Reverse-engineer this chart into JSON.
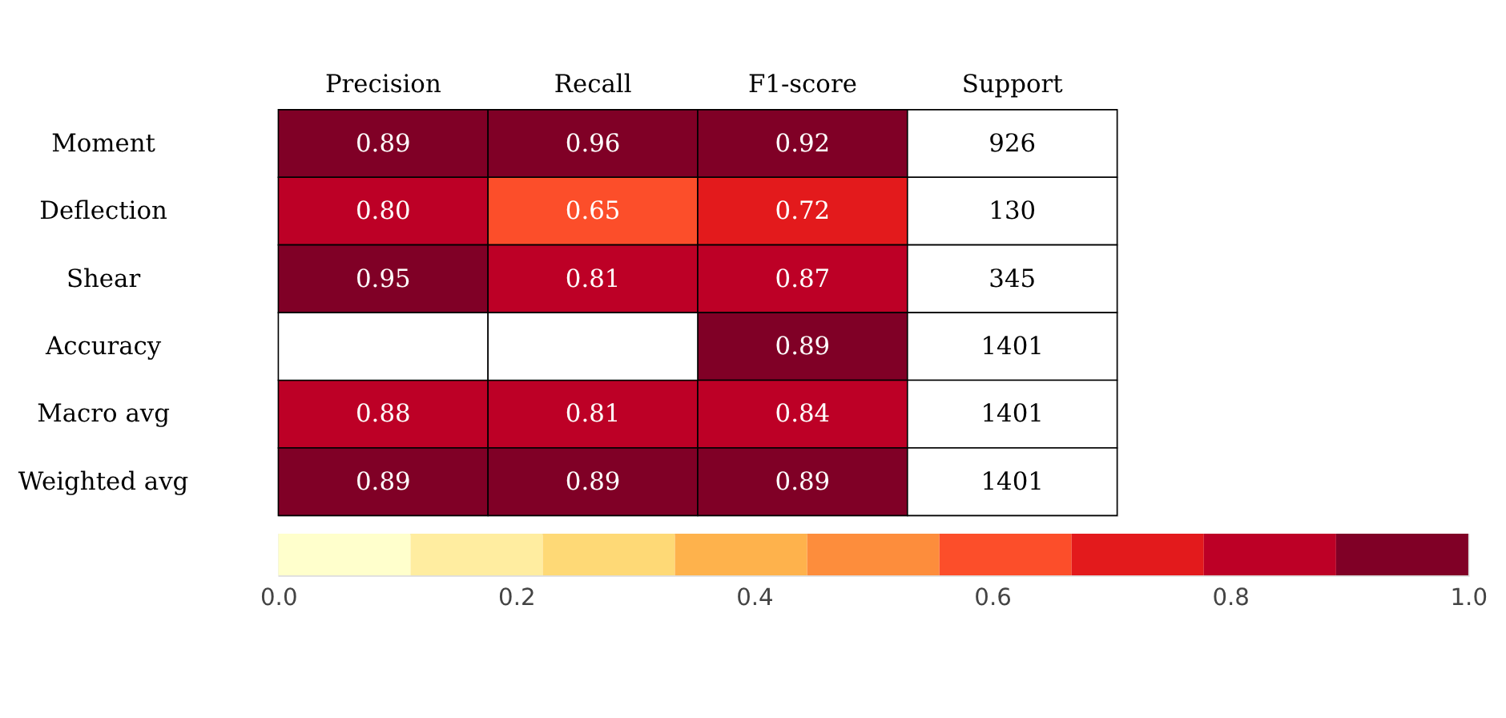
{
  "chart_data": {
    "type": "heatmap",
    "categories": [
      "Precision",
      "Recall",
      "F1-score",
      "Support"
    ],
    "y_categories": [
      "Moment",
      "Deflection",
      "Shear",
      "Accuracy",
      "Macro avg",
      "Weighted avg"
    ],
    "cells": [
      [
        0.89,
        0.96,
        0.92,
        null
      ],
      [
        0.8,
        0.65,
        0.72,
        null
      ],
      [
        0.95,
        0.81,
        0.87,
        null
      ],
      [
        null,
        null,
        0.89,
        null
      ],
      [
        0.88,
        0.81,
        0.84,
        null
      ],
      [
        0.89,
        0.89,
        0.89,
        null
      ]
    ],
    "cell_labels": [
      [
        "0.89",
        "0.96",
        "0.92",
        "926"
      ],
      [
        "0.80",
        "0.65",
        "0.72",
        "130"
      ],
      [
        "0.95",
        "0.81",
        "0.87",
        "345"
      ],
      [
        null,
        null,
        "0.89",
        "1401"
      ],
      [
        "0.88",
        "0.81",
        "0.84",
        "1401"
      ],
      [
        "0.89",
        "0.89",
        "0.89",
        "1401"
      ]
    ],
    "clim": [
      0,
      1
    ],
    "cticks": [
      {
        "value": 0,
        "label": "0.0"
      },
      {
        "value": 0.2,
        "label": "0.2"
      },
      {
        "value": 0.4,
        "label": "0.4"
      },
      {
        "value": 0.6,
        "label": "0.6"
      },
      {
        "value": 0.8,
        "label": "0.8"
      },
      {
        "value": 1,
        "label": "1.0"
      }
    ]
  }
}
